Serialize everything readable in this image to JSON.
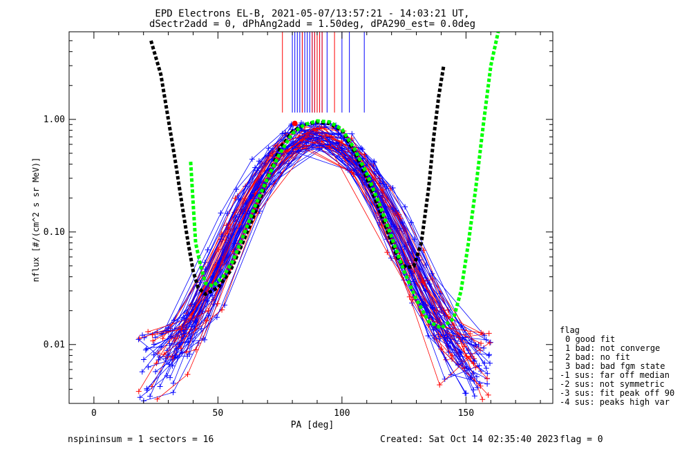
{
  "chart_data": {
    "type": "line",
    "title": "EPD Electrons EL-B, 2021-05-07/13:57:21 - 14:03:21 UT,",
    "subtitle": "dSectr2add = 0, dPhAng2add = 1.50deg, dPA290_est=    0.0deg",
    "xlabel": "PA [deg]",
    "ylabel": "nflux [#/(cm^2 s sr MeV)]",
    "xlim": [
      -10,
      185
    ],
    "ylim": [
      0.003,
      6
    ],
    "yscale": "log",
    "x_ticks": [
      0,
      50,
      100,
      150
    ],
    "y_ticks": [
      0.01,
      0.1,
      1.0
    ],
    "y_tick_labels": [
      "0.01",
      "0.10",
      "1.00"
    ],
    "colors": {
      "blue": "#0000ff",
      "red": "#ff0000",
      "black": "#000000",
      "green": "#00ff00"
    },
    "series": [
      {
        "color": "black",
        "style": "thick-dashed",
        "x": [
          23,
          27,
          30,
          33,
          36,
          38,
          40,
          42,
          45,
          50,
          55,
          60,
          65,
          70,
          75,
          80,
          85,
          90,
          95,
          100,
          105,
          110,
          115,
          120,
          123,
          126,
          129,
          132,
          135,
          137,
          139,
          141
        ],
        "y": [
          5.0,
          2.5,
          1.0,
          0.4,
          0.15,
          0.08,
          0.045,
          0.032,
          0.028,
          0.032,
          0.045,
          0.08,
          0.15,
          0.3,
          0.55,
          0.78,
          0.9,
          0.95,
          0.92,
          0.8,
          0.52,
          0.3,
          0.16,
          0.08,
          0.056,
          0.048,
          0.05,
          0.08,
          0.25,
          0.7,
          1.6,
          3.0
        ]
      },
      {
        "color": "green",
        "style": "thick-dashed",
        "x": [
          39,
          40,
          41,
          43,
          45,
          48,
          52,
          56,
          60,
          65,
          70,
          75,
          80,
          85,
          90,
          95,
          100,
          105,
          110,
          115,
          120,
          125,
          130,
          135,
          140,
          145,
          148,
          151,
          154,
          157,
          160,
          163
        ],
        "y": [
          0.42,
          0.18,
          0.08,
          0.05,
          0.035,
          0.033,
          0.04,
          0.055,
          0.09,
          0.17,
          0.3,
          0.5,
          0.75,
          0.9,
          0.97,
          0.95,
          0.82,
          0.55,
          0.33,
          0.18,
          0.09,
          0.045,
          0.025,
          0.016,
          0.014,
          0.017,
          0.03,
          0.08,
          0.25,
          0.9,
          3.0,
          6.0
        ]
      }
    ],
    "vertical_lines_blue": [
      80,
      81,
      82,
      83,
      84,
      85,
      86,
      87,
      88,
      89,
      90,
      91,
      92,
      94,
      100,
      103,
      109
    ],
    "vertical_lines_red": [
      76,
      84,
      88,
      89,
      90,
      91,
      92,
      97
    ],
    "legend": {
      "position": "right",
      "title": "flag",
      "items": [
        "0 good fit",
        "1 bad: not converge",
        "2 bad: no fit",
        "3 bad: bad fgm state",
        "-1 sus: far off median",
        "-2 sus: not symmetric",
        "-3 sus: fit peak off 90",
        "-4 sus: peaks high var"
      ]
    }
  },
  "footer": {
    "left": "nspininsum =  1  sectors = 16",
    "created": "Created: Sat Oct 14 02:35:40 2023",
    "flag": "flag = 0"
  }
}
